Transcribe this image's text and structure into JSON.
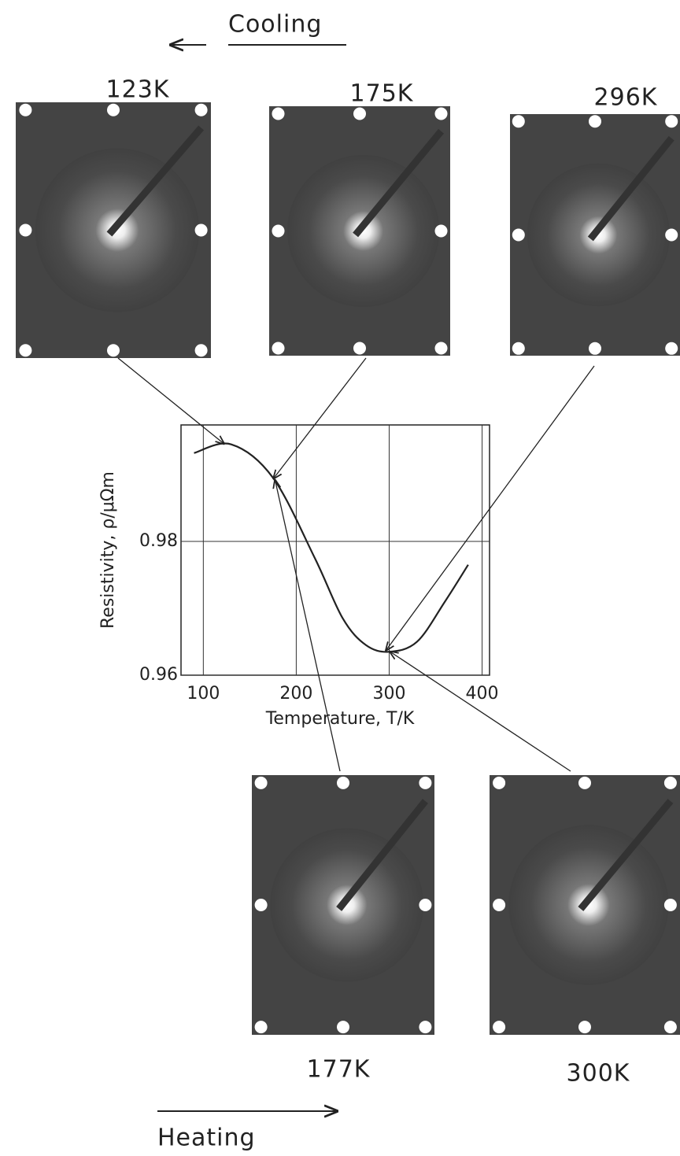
{
  "chart_data": {
    "type": "line",
    "x_label": "Temperature, T/K",
    "y_label": "Resistivity, ρ/μΩm",
    "xlim": [
      76,
      408
    ],
    "xticks": [
      100,
      200,
      300,
      400
    ],
    "ylim": [
      0.96,
      0.9974
    ],
    "yticks": [
      0.96,
      0.98
    ],
    "grid": true,
    "color": "#222",
    "x": [
      90,
      130,
      175,
      220,
      250,
      275,
      300,
      330,
      360,
      385
    ],
    "values": [
      0.9932,
      0.9945,
      0.9895,
      0.9775,
      0.9685,
      0.9645,
      0.9635,
      0.965,
      0.971,
      0.9765
    ],
    "annotations": [
      {
        "text": "123K",
        "x": 123,
        "y": 0.9945
      },
      {
        "text": "175K",
        "x": 175,
        "y": 0.9893
      },
      {
        "text": "296K",
        "x": 296,
        "y": 0.9636
      },
      {
        "text": "177K",
        "x": 177,
        "y": 0.9893
      },
      {
        "text": "300K",
        "x": 300,
        "y": 0.9636
      }
    ],
    "cooling_label": "Cooling",
    "heating_label": "Heating"
  }
}
